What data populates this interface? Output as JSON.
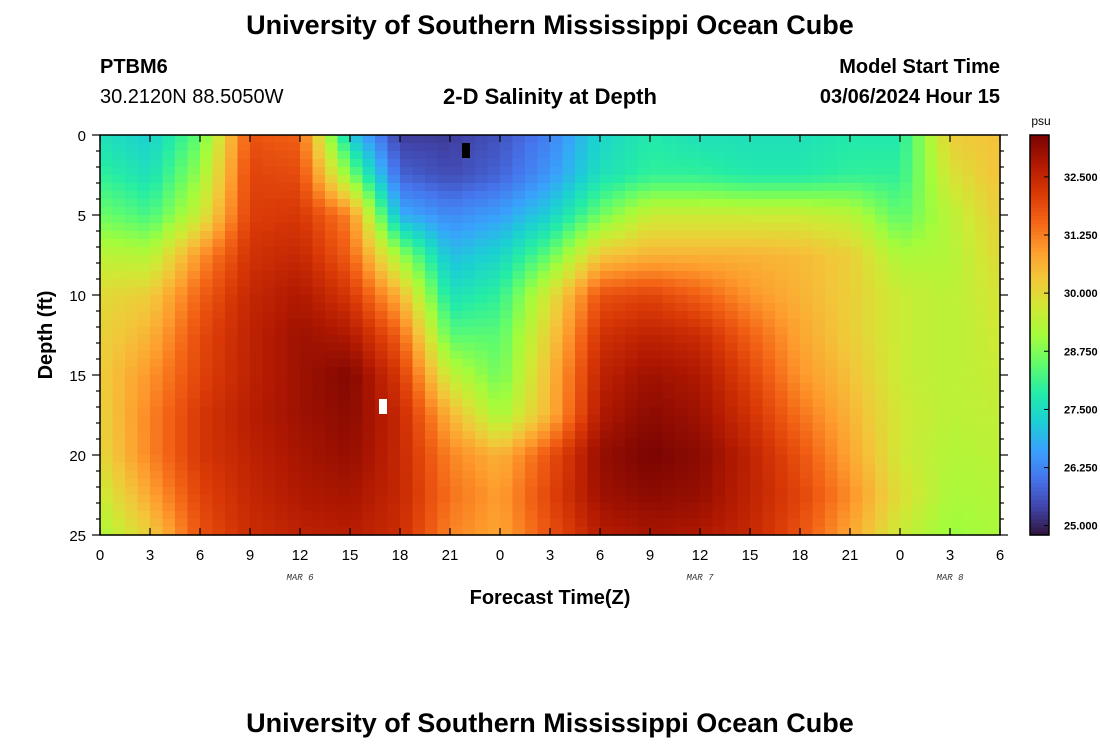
{
  "header": {
    "title": "University of Southern Mississippi Ocean Cube",
    "station_id": "PTBM6",
    "station_coords": "30.2120N  88.5050W",
    "plot_title": "2-D Salinity at Depth",
    "model_start_label": "Model Start Time",
    "model_start_value": "03/06/2024 Hour 15"
  },
  "footer": {
    "title": "University of Southern Mississippi Ocean Cube"
  },
  "chart_data": {
    "type": "heatmap",
    "title": "2-D Salinity at Depth",
    "xlabel": "Forecast Time(Z)",
    "ylabel": "Depth (ft)",
    "x_range_hours": [
      0,
      54
    ],
    "y_range_ft": [
      0,
      25
    ],
    "x_tick_labels": [
      "0",
      "3",
      "6",
      "9",
      "12",
      "15",
      "18",
      "21",
      "0",
      "3",
      "6",
      "9",
      "12",
      "15",
      "18",
      "21",
      "0",
      "3",
      "6"
    ],
    "y_tick_labels": [
      "0",
      "5",
      "10",
      "15",
      "20",
      "25"
    ],
    "y_tick_values": [
      0,
      5,
      10,
      15,
      20,
      25
    ],
    "day_labels": [
      {
        "text": "MAR 6",
        "hour": 12
      },
      {
        "text": "MAR 7",
        "hour": 36
      },
      {
        "text": "MAR 8",
        "hour": 51
      }
    ],
    "colorbar": {
      "unit": "psu",
      "min": 24.8,
      "max": 33.4,
      "tick_labels": [
        "25.000",
        "26.250",
        "27.500",
        "28.750",
        "30.000",
        "31.250",
        "32.500"
      ],
      "tick_values": [
        25.0,
        26.25,
        27.5,
        28.75,
        30.0,
        31.25,
        32.5
      ]
    },
    "colormap": [
      "#30123b",
      "#4145ab",
      "#4675ed",
      "#39a2fc",
      "#1bcfd4",
      "#24eca6",
      "#61fc6c",
      "#a4fc3b",
      "#d1e834",
      "#f3c63a",
      "#fe9b2d",
      "#f36315",
      "#d93806",
      "#b11901",
      "#7a0402"
    ],
    "grid_hours": [
      0,
      3,
      6,
      9,
      12,
      15,
      18,
      21,
      24,
      27,
      30,
      33,
      36,
      39,
      42,
      45,
      48,
      51,
      54
    ],
    "grid_depths": [
      0,
      2.5,
      5,
      7.5,
      10,
      12.5,
      15,
      17.5,
      20,
      22.5,
      25
    ],
    "salinity_psu": [
      [
        27.6,
        27.3,
        28.5,
        31.8,
        31.6,
        27.2,
        25.3,
        25.3,
        25.6,
        26.2,
        27.4,
        27.8,
        27.6,
        27.6,
        27.6,
        27.8,
        27.8,
        30.2,
        30.4
      ],
      [
        28.0,
        27.6,
        29.0,
        32.0,
        31.9,
        28.8,
        25.8,
        25.5,
        25.8,
        26.5,
        27.6,
        28.0,
        28.0,
        27.8,
        27.8,
        28.0,
        28.0,
        29.8,
        30.4
      ],
      [
        28.6,
        28.2,
        29.6,
        32.1,
        32.2,
        31.2,
        26.8,
        26.3,
        26.6,
        27.3,
        28.6,
        29.6,
        29.6,
        29.6,
        29.6,
        29.4,
        28.4,
        29.4,
        30.2
      ],
      [
        29.4,
        29.3,
        31.0,
        32.3,
        32.5,
        31.6,
        29.0,
        27.0,
        27.4,
        28.5,
        30.3,
        30.6,
        30.6,
        30.6,
        30.5,
        30.2,
        29.2,
        29.3,
        30.0
      ],
      [
        30.0,
        30.2,
        31.6,
        32.5,
        32.8,
        32.2,
        30.6,
        27.6,
        28.0,
        29.8,
        31.8,
        32.0,
        31.6,
        31.0,
        30.6,
        30.2,
        29.6,
        29.4,
        29.8
      ],
      [
        30.1,
        30.6,
        31.9,
        32.6,
        33.0,
        32.8,
        31.6,
        28.4,
        28.4,
        30.2,
        32.3,
        32.6,
        32.4,
        31.6,
        30.8,
        30.2,
        29.6,
        29.4,
        29.7
      ],
      [
        30.2,
        31.0,
        32.0,
        32.6,
        33.0,
        33.3,
        32.2,
        29.5,
        28.6,
        30.5,
        32.6,
        33.0,
        32.8,
        32.0,
        31.0,
        30.4,
        29.6,
        29.4,
        29.6
      ],
      [
        30.1,
        31.2,
        32.2,
        32.7,
        33.0,
        33.2,
        32.5,
        30.6,
        29.1,
        30.6,
        32.8,
        33.2,
        33.0,
        32.3,
        31.4,
        30.6,
        29.7,
        29.4,
        29.5
      ],
      [
        30.0,
        31.2,
        32.2,
        32.6,
        32.9,
        33.1,
        32.5,
        31.2,
        30.6,
        31.8,
        33.1,
        33.4,
        33.2,
        32.6,
        31.8,
        30.8,
        29.7,
        29.3,
        29.4
      ],
      [
        29.6,
        30.8,
        32.0,
        32.5,
        32.8,
        32.9,
        32.5,
        31.4,
        30.9,
        32.0,
        33.0,
        33.2,
        33.1,
        32.6,
        32.0,
        31.1,
        29.9,
        29.2,
        29.3
      ],
      [
        29.2,
        30.2,
        31.8,
        32.4,
        32.6,
        32.7,
        32.4,
        31.2,
        30.8,
        31.8,
        32.7,
        32.9,
        32.8,
        32.5,
        31.8,
        30.8,
        29.6,
        29.0,
        29.2
      ]
    ]
  }
}
